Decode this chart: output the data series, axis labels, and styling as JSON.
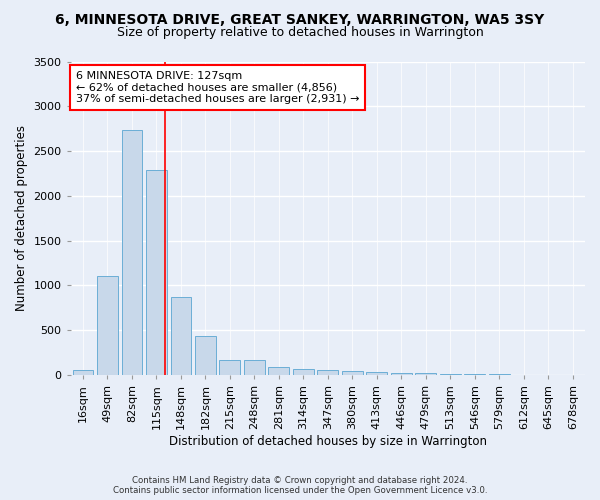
{
  "title": "6, MINNESOTA DRIVE, GREAT SANKEY, WARRINGTON, WA5 3SY",
  "subtitle": "Size of property relative to detached houses in Warrington",
  "xlabel": "Distribution of detached houses by size in Warrington",
  "ylabel": "Number of detached properties",
  "categories": [
    "16sqm",
    "49sqm",
    "82sqm",
    "115sqm",
    "148sqm",
    "182sqm",
    "215sqm",
    "248sqm",
    "281sqm",
    "314sqm",
    "347sqm",
    "380sqm",
    "413sqm",
    "446sqm",
    "479sqm",
    "513sqm",
    "546sqm",
    "579sqm",
    "612sqm",
    "645sqm",
    "678sqm"
  ],
  "values": [
    50,
    1100,
    2730,
    2290,
    870,
    430,
    170,
    165,
    90,
    65,
    50,
    40,
    30,
    25,
    15,
    10,
    8,
    5,
    3,
    2,
    1
  ],
  "bar_color": "#c8d8ea",
  "bar_edge_color": "#6baed6",
  "vline_color": "red",
  "annotation_text": "6 MINNESOTA DRIVE: 127sqm\n← 62% of detached houses are smaller (4,856)\n37% of semi-detached houses are larger (2,931) →",
  "annotation_box_color": "white",
  "annotation_box_edge": "red",
  "ylim": [
    0,
    3500
  ],
  "yticks": [
    0,
    500,
    1000,
    1500,
    2000,
    2500,
    3000,
    3500
  ],
  "background_color": "#e8eef8",
  "grid_color": "white",
  "footer_line1": "Contains HM Land Registry data © Crown copyright and database right 2024.",
  "footer_line2": "Contains public sector information licensed under the Open Government Licence v3.0.",
  "title_fontsize": 10,
  "subtitle_fontsize": 9,
  "xlabel_fontsize": 8.5,
  "ylabel_fontsize": 8.5,
  "tick_fontsize": 8,
  "annotation_fontsize": 8
}
